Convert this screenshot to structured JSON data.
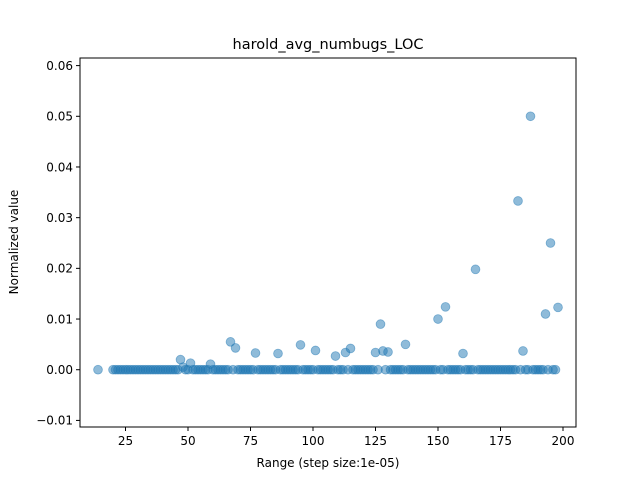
{
  "chart_data": {
    "type": "scatter",
    "title": "harold_avg_numbugs_LOC",
    "xlabel": "Range (step size:1e-05)",
    "ylabel": "Normalized value",
    "xlim": [
      6.8,
      205.2
    ],
    "ylim": [
      -0.0113,
      0.0615
    ],
    "xticks": [
      25,
      50,
      75,
      100,
      125,
      150,
      175,
      200
    ],
    "xtick_labels": [
      "25",
      "50",
      "75",
      "100",
      "125",
      "150",
      "175",
      "200"
    ],
    "yticks": [
      -0.01,
      0.0,
      0.01,
      0.02,
      0.03,
      0.04,
      0.05,
      0.06
    ],
    "ytick_labels": [
      "−0.01",
      "0.00",
      "0.01",
      "0.02",
      "0.03",
      "0.04",
      "0.05",
      "0.06"
    ],
    "grid": false,
    "legend": "none",
    "marker_color": "#1f77b4",
    "marker_alpha": 0.5,
    "x": [
      14,
      20,
      21,
      22,
      23,
      24,
      25,
      26,
      27,
      28,
      29,
      30,
      31,
      32,
      33,
      34,
      35,
      36,
      37,
      38,
      39,
      40,
      41,
      42,
      43,
      44,
      45,
      46,
      47,
      48,
      49,
      50,
      51,
      52,
      53,
      54,
      55,
      56,
      57,
      58,
      59,
      60,
      61,
      62,
      63,
      64,
      65,
      66,
      67,
      68,
      69,
      70,
      71,
      72,
      73,
      74,
      75,
      76,
      77,
      78,
      79,
      80,
      81,
      82,
      83,
      84,
      85,
      86,
      87,
      88,
      89,
      90,
      91,
      92,
      93,
      94,
      95,
      96,
      97,
      98,
      99,
      100,
      101,
      102,
      103,
      104,
      105,
      106,
      107,
      108,
      109,
      110,
      111,
      112,
      113,
      114,
      115,
      116,
      117,
      118,
      119,
      120,
      121,
      122,
      123,
      124,
      125,
      126,
      127,
      128,
      129,
      130,
      131,
      132,
      133,
      134,
      135,
      136,
      137,
      138,
      139,
      140,
      141,
      142,
      143,
      144,
      145,
      146,
      147,
      148,
      149,
      150,
      151,
      152,
      153,
      154,
      155,
      156,
      157,
      158,
      159,
      160,
      161,
      162,
      163,
      164,
      165,
      166,
      167,
      168,
      169,
      170,
      171,
      172,
      173,
      174,
      175,
      176,
      177,
      178,
      179,
      180,
      181,
      182,
      183,
      184,
      185,
      186,
      187,
      188,
      189,
      190,
      191,
      192,
      193,
      194,
      195,
      196,
      197,
      198
    ],
    "y": [
      0.0,
      0.0,
      0.0,
      0.0,
      0.0,
      0.0,
      0.0,
      0.0,
      0.0,
      0.0,
      0.0,
      0.0,
      0.0,
      0.0,
      0.0,
      0.0,
      0.0,
      0.0,
      0.0,
      0.0,
      0.0,
      0.0,
      0.0,
      0.0,
      0.0,
      0.0,
      0.0,
      0.0,
      0.002,
      0.0005,
      0.0,
      0.0,
      0.0013,
      0.0,
      0.0,
      0.0,
      0.0,
      0.0,
      0.0,
      0.0,
      0.0011,
      0.0,
      0.0,
      0.0,
      0.0,
      0.0,
      0.0,
      0.0,
      0.0055,
      0.0,
      0.0043,
      0.0,
      0.0,
      0.0,
      0.0,
      0.0,
      0.0,
      0.0,
      0.0033,
      0.0,
      0.0,
      0.0,
      0.0,
      0.0,
      0.0,
      0.0,
      0.0,
      0.0032,
      0.0,
      0.0,
      0.0,
      0.0,
      0.0,
      0.0,
      0.0,
      0.0,
      0.0049,
      0.0,
      0.0,
      0.0,
      0.0,
      0.0,
      0.0038,
      0.0,
      0.0,
      0.0,
      0.0,
      0.0,
      0.0,
      0.0,
      0.0027,
      0.0,
      0.0,
      0.0,
      0.0034,
      0.0,
      0.0042,
      0.0,
      0.0,
      0.0,
      0.0,
      0.0,
      0.0,
      0.0,
      0.0,
      0.0,
      0.0034,
      0.0,
      0.009,
      0.0037,
      0.0,
      0.0035,
      0.0,
      0.0,
      0.0,
      0.0,
      0.0,
      0.0,
      0.005,
      0.0,
      0.0,
      0.0,
      0.0,
      0.0,
      0.0,
      0.0,
      0.0,
      0.0,
      0.0,
      0.0,
      0.0,
      0.01,
      0.0,
      0.0,
      0.0124,
      0.0,
      0.0,
      0.0,
      0.0,
      0.0,
      0.0,
      0.0032,
      0.0,
      0.0,
      0.0,
      0.0,
      0.0198,
      0.0,
      0.0,
      0.0,
      0.0,
      0.0,
      0.0,
      0.0,
      0.0,
      0.0,
      0.0,
      0.0,
      0.0,
      0.0,
      0.0,
      0.0,
      0.0,
      0.0333,
      0.0,
      0.0037,
      0.0,
      0.0,
      0.05,
      0.0,
      0.0,
      0.0,
      0.0,
      0.0,
      0.011,
      0.0,
      0.025,
      0.0,
      0.0,
      0.0123
    ]
  }
}
